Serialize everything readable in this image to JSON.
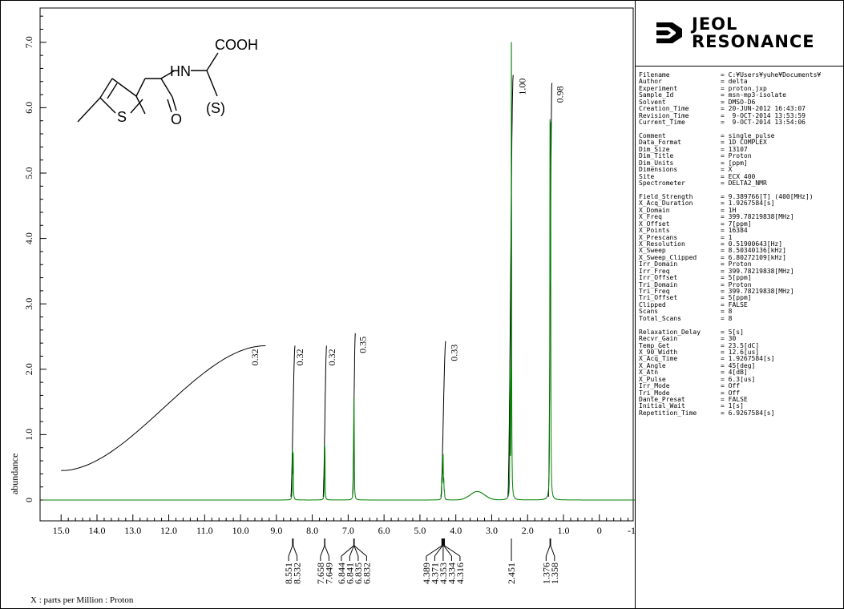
{
  "chart_data": {
    "type": "line",
    "title": "",
    "xlabel": "X : parts per Million : Proton",
    "ylabel": "abundance",
    "xlim": [
      15.5,
      -1.0
    ],
    "ylim": [
      -0.1,
      7.4
    ],
    "x_ticks": [
      "15.0",
      "14.0",
      "13.0",
      "12.0",
      "11.0",
      "10.0",
      "9.0",
      "8.0",
      "7.0",
      "6.0",
      "5.0",
      "4.0",
      "3.0",
      "2.0",
      "1.0",
      "0",
      "-1.0"
    ],
    "y_ticks": [
      "0",
      "1.0",
      "2.0",
      "3.0",
      "4.0",
      "5.0",
      "6.0",
      "7.0"
    ],
    "spectrum_color": "#008000",
    "integral_color": "#000000",
    "peaks": [
      {
        "ppm": 8.551,
        "height": 0.72
      },
      {
        "ppm": 8.532,
        "height": 0.66
      },
      {
        "ppm": 7.658,
        "height": 0.66
      },
      {
        "ppm": 7.649,
        "height": 0.6
      },
      {
        "ppm": 6.844,
        "height": 0.6
      },
      {
        "ppm": 6.841,
        "height": 0.66
      },
      {
        "ppm": 6.835,
        "height": 0.56
      },
      {
        "ppm": 6.832,
        "height": 0.5
      },
      {
        "ppm": 4.389,
        "height": 0.22
      },
      {
        "ppm": 4.371,
        "height": 0.6
      },
      {
        "ppm": 4.353,
        "height": 0.62
      },
      {
        "ppm": 4.334,
        "height": 0.26
      },
      {
        "ppm": 4.316,
        "height": 0.1
      },
      {
        "ppm": 2.49,
        "height": 1.85
      },
      {
        "ppm": 2.451,
        "height": 7.15
      },
      {
        "ppm": 1.376,
        "height": 5.3
      },
      {
        "ppm": 1.358,
        "height": 5.25
      }
    ],
    "integrals": [
      {
        "from": 15.0,
        "to": 9.3,
        "start": 0.45,
        "end": 2.36,
        "label": "0.32",
        "label_ppm": 9.6
      },
      {
        "from": 8.6,
        "to": 8.48,
        "start": 0.05,
        "end": 2.36,
        "label": "0.32",
        "label_ppm": 8.35
      },
      {
        "from": 7.7,
        "to": 7.6,
        "start": 0.05,
        "end": 2.36,
        "label": "0.32",
        "label_ppm": 7.45
      },
      {
        "from": 6.88,
        "to": 6.8,
        "start": 0.05,
        "end": 2.55,
        "label": "0.35",
        "label_ppm": 6.6
      },
      {
        "from": 4.42,
        "to": 4.28,
        "start": 0.05,
        "end": 2.43,
        "label": "0.33",
        "label_ppm": 4.05
      },
      {
        "from": 2.55,
        "to": 2.4,
        "start": 0.05,
        "end": 6.5,
        "label": "1.00",
        "label_ppm": 2.15
      },
      {
        "from": 1.42,
        "to": 1.32,
        "start": 0.05,
        "end": 6.38,
        "label": "0.98",
        "label_ppm": 1.1
      }
    ],
    "peak_label_groups": [
      {
        "labels": [
          "8.551",
          "8.532"
        ]
      },
      {
        "labels": [
          "7.658",
          "7.649"
        ]
      },
      {
        "labels": [
          "6.844",
          "6.841",
          "6.835",
          "6.832"
        ]
      },
      {
        "labels": [
          "4.389",
          "4.371",
          "4.353",
          "4.334",
          "4.316"
        ]
      },
      {
        "labels": [
          "2.451"
        ]
      },
      {
        "labels": [
          "1.376",
          "1.358"
        ]
      }
    ]
  },
  "structure": {
    "atoms": [
      "COOH",
      "HN",
      "S",
      "O",
      "(S)"
    ],
    "stereo_text": "(S)"
  },
  "logo": {
    "line1": "JEOL",
    "line2": "RESONANCE"
  },
  "parameters": [
    {
      "k": "Filename",
      "v": "= C:¥Users¥yuhe¥Documents¥"
    },
    {
      "k": "Author",
      "v": "= delta"
    },
    {
      "k": "Experiment",
      "v": "= proton.jxp"
    },
    {
      "k": "Sample_Id",
      "v": "= msn-mp3-isolate"
    },
    {
      "k": "Solvent",
      "v": "= DMSO-D6"
    },
    {
      "k": "Creation_Time",
      "v": "= 20-JUN-2012 16:43:07"
    },
    {
      "k": "Revision_Time",
      "v": "=  9-OCT-2014 13:53:59"
    },
    {
      "k": "Current_Time",
      "v": "=  9-OCT-2014 13:54:06"
    },
    {
      "k": "",
      "v": ""
    },
    {
      "k": "Comment",
      "v": "= single_pulse"
    },
    {
      "k": "Data_Format",
      "v": "= 1D COMPLEX"
    },
    {
      "k": "Dim_Size",
      "v": "= 13107"
    },
    {
      "k": "Dim_Title",
      "v": "= Proton"
    },
    {
      "k": "Dim_Units",
      "v": "= [ppm]"
    },
    {
      "k": "Dimensions",
      "v": "= X"
    },
    {
      "k": "Site",
      "v": "= ECX 400"
    },
    {
      "k": "Spectrometer",
      "v": "= DELTA2_NMR"
    },
    {
      "k": "",
      "v": ""
    },
    {
      "k": "Field_Strength",
      "v": "= 9.389766[T] (400[MHz])"
    },
    {
      "k": "X_Acq_Duration",
      "v": "= 1.9267584[s]"
    },
    {
      "k": "X_Domain",
      "v": "= 1H"
    },
    {
      "k": "X_Freq",
      "v": "= 399.78219838[MHz]"
    },
    {
      "k": "X_Offset",
      "v": "= 7[ppm]"
    },
    {
      "k": "X_Points",
      "v": "= 16384"
    },
    {
      "k": "X_Prescans",
      "v": "= 1"
    },
    {
      "k": "X_Resolution",
      "v": "= 0.51900643[Hz]"
    },
    {
      "k": "X_Sweep",
      "v": "= 8.50340136[kHz]"
    },
    {
      "k": "X_Sweep_Clipped",
      "v": "= 6.80272109[kHz]"
    },
    {
      "k": "Irr_Domain",
      "v": "= Proton"
    },
    {
      "k": "Irr_Freq",
      "v": "= 399.78219838[MHz]"
    },
    {
      "k": "Irr_Offset",
      "v": "= 5[ppm]"
    },
    {
      "k": "Tri_Domain",
      "v": "= Proton"
    },
    {
      "k": "Tri_Freq",
      "v": "= 399.78219838[MHz]"
    },
    {
      "k": "Tri_Offset",
      "v": "= 5[ppm]"
    },
    {
      "k": "Clipped",
      "v": "= FALSE"
    },
    {
      "k": "Scans",
      "v": "= 8"
    },
    {
      "k": "Total_Scans",
      "v": "= 8"
    },
    {
      "k": "",
      "v": ""
    },
    {
      "k": "Relaxation_Delay",
      "v": "= 5[s]"
    },
    {
      "k": "Recvr_Gain",
      "v": "= 30"
    },
    {
      "k": "Temp_Get",
      "v": "= 23.5[dC]"
    },
    {
      "k": "X_90_Width",
      "v": "= 12.6[us]"
    },
    {
      "k": "X_Acq_Time",
      "v": "= 1.9267584[s]"
    },
    {
      "k": "X_Angle",
      "v": "= 45[deg]"
    },
    {
      "k": "X_Atn",
      "v": "= 4[dB]"
    },
    {
      "k": "X_Pulse",
      "v": "= 6.3[us]"
    },
    {
      "k": "Irr_Mode",
      "v": "= Off"
    },
    {
      "k": "Tri_Mode",
      "v": "= Off"
    },
    {
      "k": "Dante_Presat",
      "v": "= FALSE"
    },
    {
      "k": "Initial_Wait",
      "v": "= 1[s]"
    },
    {
      "k": "Repetition_Time",
      "v": "= 6.9267584[s]"
    }
  ]
}
